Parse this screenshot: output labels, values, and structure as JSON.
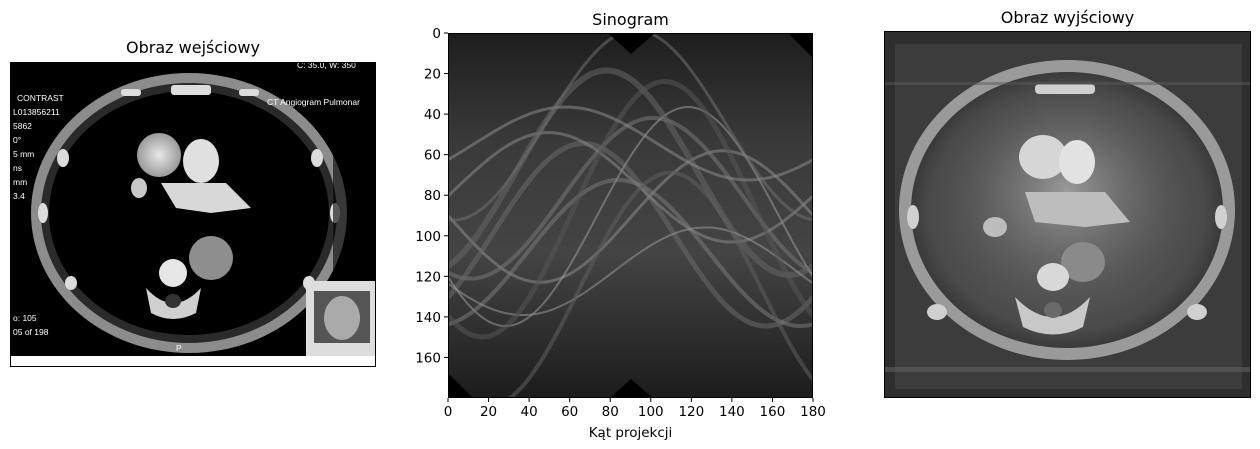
{
  "chart_data": [
    {
      "type": "image",
      "title": "Obraz wejściowy",
      "overlay_text": [
        "C: 35.0, W: 350",
        "CONTRAST",
        "L013856211",
        "5862",
        "0°",
        "5 mm",
        "ns",
        "mm",
        "3.4",
        "CT Angiogram Pulmonar",
        "P",
        "o: 105",
        "05 of 198"
      ]
    },
    {
      "type": "heatmap",
      "title": "Sinogram",
      "xlabel": "Kąt projekcji",
      "ylabel": "",
      "xlim": [
        0,
        180
      ],
      "ylim": [
        180,
        0
      ],
      "xticks": [
        0,
        20,
        40,
        60,
        80,
        100,
        120,
        140,
        160,
        180
      ],
      "yticks": [
        0,
        20,
        40,
        60,
        80,
        100,
        120,
        140,
        160
      ],
      "colormap": "gray"
    },
    {
      "type": "image",
      "title": "Obraz wyjściowy"
    }
  ]
}
